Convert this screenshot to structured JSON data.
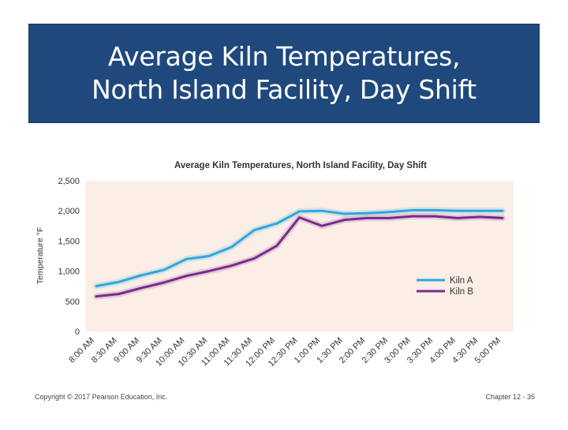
{
  "slide": {
    "title_line1": "Average Kiln Temperatures,",
    "title_line2": "North Island Facility, Day Shift",
    "copyright": "Copyright © 2017 Pearson Education, Inc.",
    "chapter": "Chapter 12 - 35"
  },
  "colors": {
    "banner": "#1f497d",
    "kiln_a": "#2ea7dc",
    "kiln_b": "#7b2a8c",
    "plot_bg": "#fbeee6"
  },
  "chart_data": {
    "type": "line",
    "title": "Average Kiln Temperatures, North Island Facility, Day Shift",
    "xlabel": "",
    "ylabel": "Temperature °F",
    "ylim": [
      0,
      2500
    ],
    "yticks": [
      "0",
      "500",
      "1,000",
      "1,500",
      "2,000",
      "2,500"
    ],
    "ytick_values": [
      0,
      500,
      1000,
      1500,
      2000,
      2500
    ],
    "grid": false,
    "legend_position": "right",
    "categories": [
      "8:00 AM",
      "8:30 AM",
      "9:00 AM",
      "9:30 AM",
      "10:00 AM",
      "10:30 AM",
      "11:00 AM",
      "11:30 AM",
      "12:00 PM",
      "12:30 PM",
      "1:00 PM",
      "1:30 PM",
      "2:00 PM",
      "2:30 PM",
      "3:00 PM",
      "3:30 PM",
      "4:00 PM",
      "4:30 PM",
      "5:00 PM"
    ],
    "series": [
      {
        "name": "Kiln A",
        "values": [
          750,
          820,
          930,
          1020,
          1200,
          1250,
          1400,
          1680,
          1790,
          1990,
          2000,
          1950,
          1960,
          1980,
          2010,
          2010,
          2000,
          2000,
          2000
        ]
      },
      {
        "name": "Kiln B",
        "values": [
          580,
          620,
          720,
          810,
          920,
          1000,
          1090,
          1210,
          1420,
          1890,
          1750,
          1850,
          1880,
          1880,
          1910,
          1910,
          1880,
          1900,
          1880
        ]
      }
    ]
  }
}
